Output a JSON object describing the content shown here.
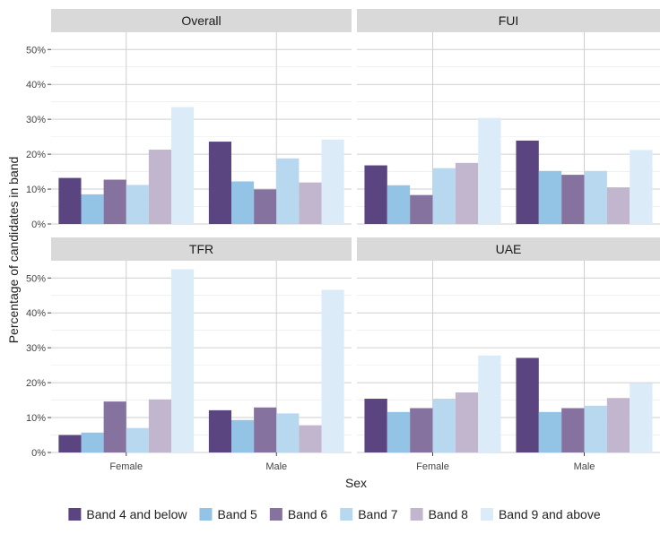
{
  "chart_data": {
    "type": "bar",
    "faceted": true,
    "xlabel": "Sex",
    "ylabel": "Percentage of candidates in band",
    "categories": [
      "Female",
      "Male"
    ],
    "ylim": [
      0,
      50
    ],
    "yticks": [
      0,
      10,
      20,
      30,
      40,
      50
    ],
    "ytick_labels": [
      "0%",
      "10%",
      "20%",
      "30%",
      "40%",
      "50%"
    ],
    "grid": true,
    "legend_position": "bottom",
    "series": [
      {
        "name": "Band 4 and below",
        "color": "#5b4580"
      },
      {
        "name": "Band 5",
        "color": "#93c4e6"
      },
      {
        "name": "Band 6",
        "color": "#86729f"
      },
      {
        "name": "Band 7",
        "color": "#b8d8f0"
      },
      {
        "name": "Band 8",
        "color": "#c2b6cf"
      },
      {
        "name": "Band 9 and above",
        "color": "#dcebf8"
      }
    ],
    "panels": [
      {
        "title": "Overall",
        "values": [
          [
            13.2,
            8.5,
            12.7,
            11.2,
            21.3,
            33.5
          ],
          [
            23.6,
            12.2,
            9.9,
            18.8,
            11.9,
            24.2
          ]
        ]
      },
      {
        "title": "FUI",
        "values": [
          [
            16.8,
            11.1,
            8.3,
            16.0,
            17.5,
            30.4
          ],
          [
            23.9,
            15.2,
            14.1,
            15.2,
            10.5,
            21.2
          ]
        ]
      },
      {
        "title": "TFR",
        "values": [
          [
            5.0,
            5.7,
            14.6,
            7.0,
            15.2,
            52.5
          ],
          [
            12.1,
            9.3,
            12.9,
            11.2,
            7.8,
            46.6
          ]
        ]
      },
      {
        "title": "UAE",
        "values": [
          [
            15.4,
            11.6,
            12.7,
            15.4,
            17.2,
            27.8
          ],
          [
            27.1,
            11.6,
            12.7,
            13.4,
            15.6,
            19.9
          ]
        ]
      }
    ]
  }
}
